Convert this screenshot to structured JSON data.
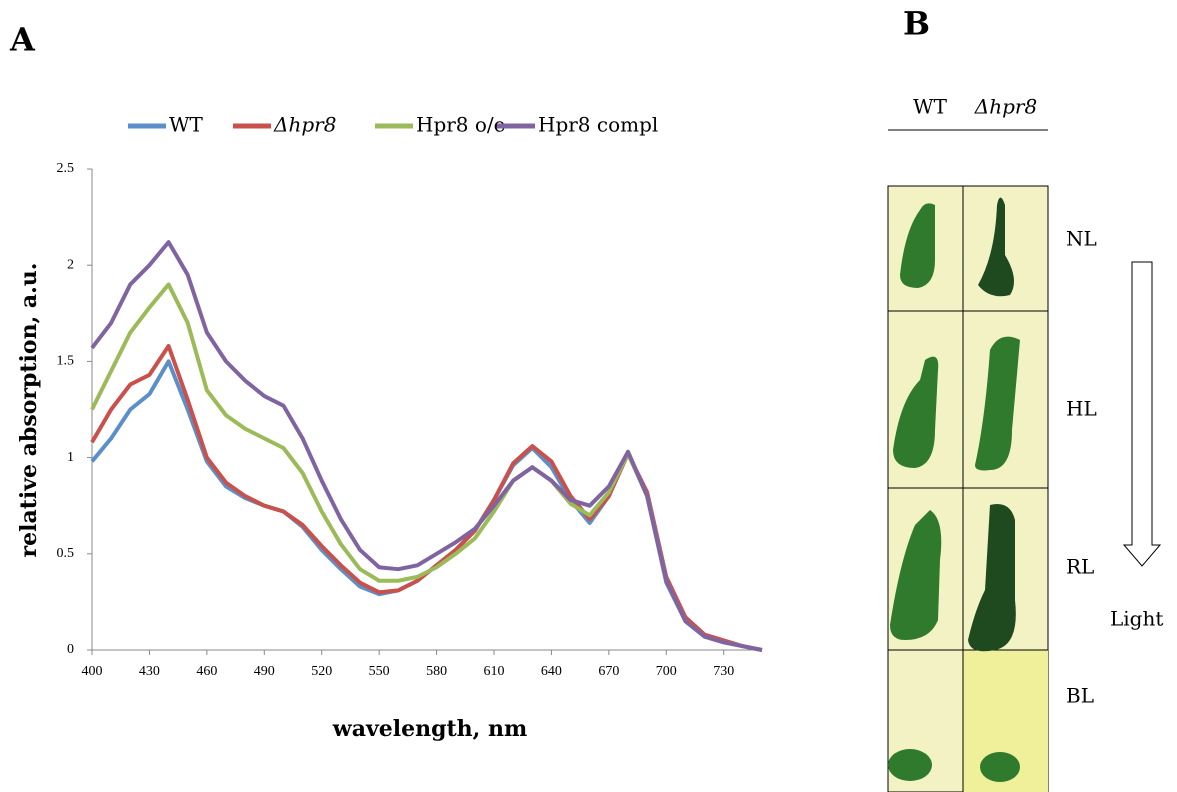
{
  "panel_labels": [
    "A",
    "B"
  ],
  "chart_data": {
    "type": "line",
    "xlabel": "wavelength, nm",
    "ylabel": "relative absorption, a.u.",
    "x": [
      400,
      410,
      420,
      430,
      440,
      450,
      460,
      470,
      480,
      490,
      500,
      510,
      520,
      530,
      540,
      550,
      560,
      570,
      580,
      590,
      600,
      610,
      620,
      630,
      640,
      650,
      660,
      670,
      680,
      690,
      700,
      710,
      720,
      730,
      740,
      750
    ],
    "series": [
      {
        "name": "WT",
        "color": "#5b8fc9",
        "values": [
          0.98,
          1.1,
          1.25,
          1.33,
          1.5,
          1.25,
          0.98,
          0.85,
          0.79,
          0.75,
          0.72,
          0.64,
          0.52,
          0.42,
          0.33,
          0.29,
          0.31,
          0.36,
          0.44,
          0.52,
          0.62,
          0.78,
          0.96,
          1.05,
          0.95,
          0.78,
          0.66,
          0.8,
          1.03,
          0.8,
          0.35,
          0.15,
          0.07,
          0.04,
          0.02,
          0
        ]
      },
      {
        "name": "Δhpr8",
        "color": "#c9504b",
        "values": [
          1.08,
          1.25,
          1.38,
          1.43,
          1.58,
          1.3,
          1.0,
          0.87,
          0.8,
          0.75,
          0.72,
          0.65,
          0.54,
          0.44,
          0.35,
          0.3,
          0.31,
          0.36,
          0.44,
          0.52,
          0.62,
          0.78,
          0.97,
          1.06,
          0.98,
          0.8,
          0.68,
          0.8,
          1.02,
          0.82,
          0.38,
          0.17,
          0.08,
          0.05,
          0.02,
          0
        ]
      },
      {
        "name": "Hpr8 o/e",
        "color": "#9bbb59",
        "values": [
          1.25,
          1.45,
          1.65,
          1.78,
          1.9,
          1.7,
          1.35,
          1.22,
          1.15,
          1.1,
          1.05,
          0.92,
          0.72,
          0.55,
          0.42,
          0.36,
          0.36,
          0.38,
          0.43,
          0.5,
          0.58,
          0.72,
          0.88,
          0.95,
          0.88,
          0.76,
          0.7,
          0.82,
          1.02,
          0.8,
          0.36,
          0.15,
          0.07,
          0.04,
          0.02,
          0
        ]
      },
      {
        "name": "Hpr8 compl",
        "color": "#8064a2",
        "values": [
          1.57,
          1.7,
          1.9,
          2.0,
          2.12,
          1.95,
          1.65,
          1.5,
          1.4,
          1.32,
          1.27,
          1.1,
          0.88,
          0.68,
          0.52,
          0.43,
          0.42,
          0.44,
          0.5,
          0.56,
          0.63,
          0.75,
          0.88,
          0.95,
          0.88,
          0.78,
          0.75,
          0.85,
          1.03,
          0.8,
          0.36,
          0.15,
          0.07,
          0.04,
          0.02,
          0
        ]
      }
    ],
    "xlim": [
      400,
      750
    ],
    "ylim": [
      0,
      2.5
    ],
    "xticks": [
      400,
      430,
      460,
      490,
      520,
      550,
      580,
      610,
      640,
      670,
      700,
      730
    ],
    "yticks": [
      0,
      0.5,
      1,
      1.5,
      2,
      2.5
    ],
    "grid": false,
    "legend": "top"
  },
  "panel_b": {
    "columns": [
      "WT",
      "Δhpr8"
    ],
    "rows": [
      "NL",
      "HL",
      "RL",
      "BL"
    ],
    "arrow_label": "Light"
  }
}
